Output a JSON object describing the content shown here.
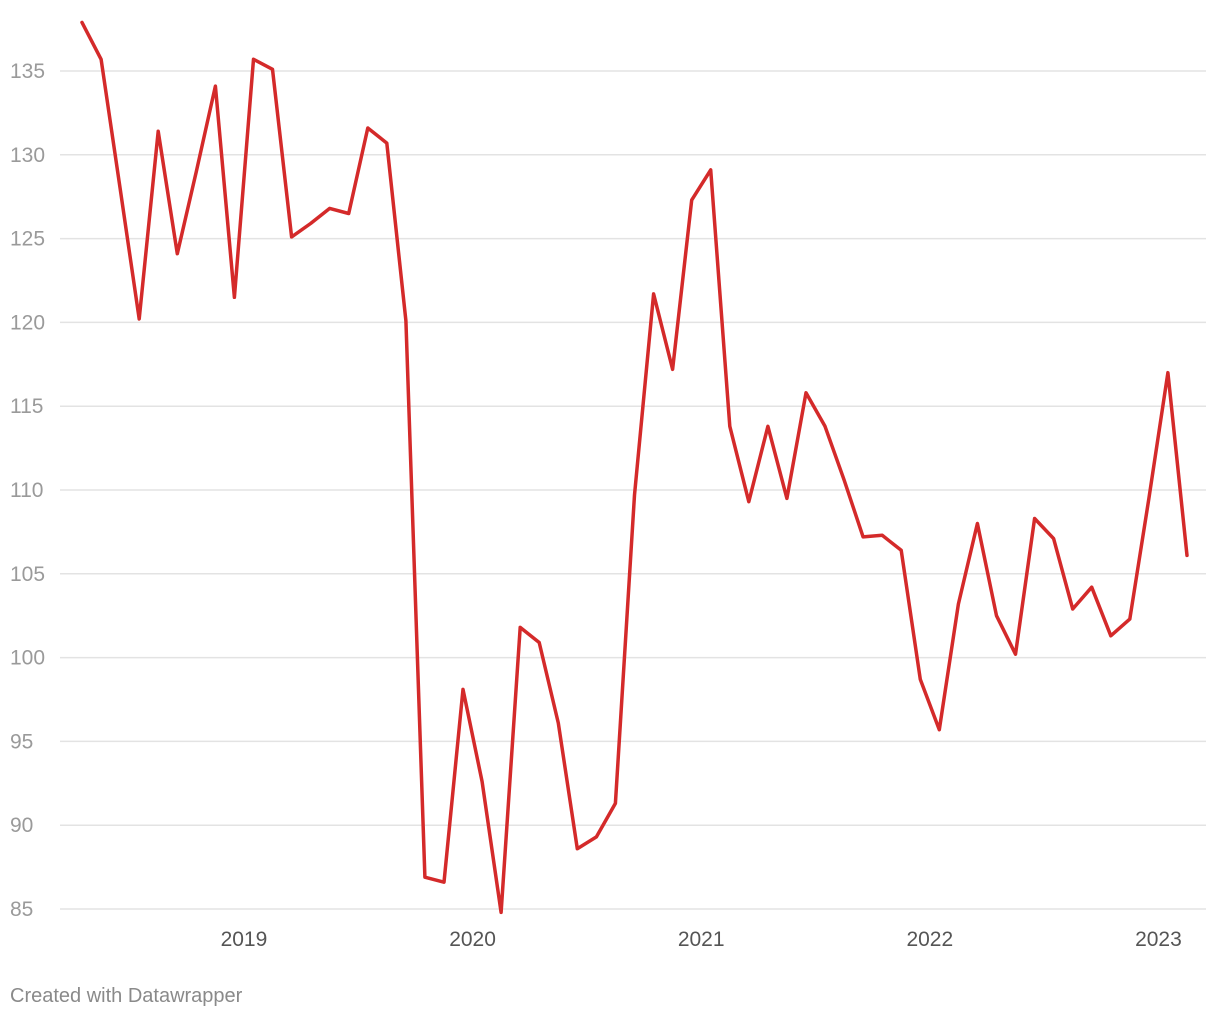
{
  "chart_data": {
    "type": "line",
    "title": "",
    "xlabel": "",
    "ylabel": "",
    "ylim": [
      85,
      137.5
    ],
    "yticks": [
      85,
      90,
      95,
      100,
      105,
      110,
      115,
      120,
      125,
      130,
      135
    ],
    "xticks": [
      "2019",
      "2020",
      "2021",
      "2022",
      "2023"
    ],
    "grid": true,
    "legend": "none",
    "color": "#d42a2a",
    "series": [
      {
        "x": [
          "2018-10",
          "2018-11",
          "2018-12",
          "2019-01",
          "2019-02",
          "2019-03",
          "2019-04",
          "2019-05",
          "2019-06",
          "2019-07",
          "2019-08",
          "2019-09",
          "2019-10",
          "2019-11",
          "2019-12",
          "2020-01",
          "2020-02",
          "2020-03",
          "2020-04",
          "2020-05",
          "2020-06",
          "2020-07",
          "2020-08",
          "2020-09",
          "2020-10",
          "2020-11",
          "2020-12",
          "2021-01",
          "2021-02",
          "2021-03",
          "2021-04",
          "2021-05",
          "2021-06",
          "2021-07",
          "2021-08",
          "2021-09",
          "2021-10",
          "2021-11",
          "2021-12",
          "2022-01",
          "2022-02",
          "2022-03",
          "2022-04",
          "2022-05",
          "2022-06",
          "2022-07",
          "2022-08",
          "2022-09",
          "2022-10",
          "2022-11",
          "2022-12",
          "2023-01",
          "2023-02",
          "2023-03",
          "2023-04",
          "2023-05",
          "2023-06",
          "2023-07",
          "2023-08"
        ],
        "values": [
          137.9,
          135.7,
          128.0,
          120.2,
          131.4,
          124.1,
          129.0,
          134.1,
          121.5,
          135.7,
          135.1,
          125.1,
          125.9,
          126.8,
          126.5,
          131.6,
          130.7,
          120.1,
          86.9,
          86.6,
          98.1,
          92.6,
          84.8,
          101.8,
          100.9,
          96.1,
          88.6,
          89.3,
          91.3,
          109.7,
          121.7,
          117.2,
          127.3,
          129.1,
          113.8,
          109.3,
          113.8,
          109.5,
          115.8,
          113.8,
          110.6,
          107.2,
          107.3,
          106.4,
          98.7,
          95.7,
          103.2,
          108.0,
          102.5,
          100.2,
          108.3,
          107.1,
          102.9,
          104.2,
          101.3,
          102.3,
          109.5,
          117.0,
          106.1
        ]
      }
    ]
  },
  "footer": {
    "credit": "Created with Datawrapper"
  }
}
